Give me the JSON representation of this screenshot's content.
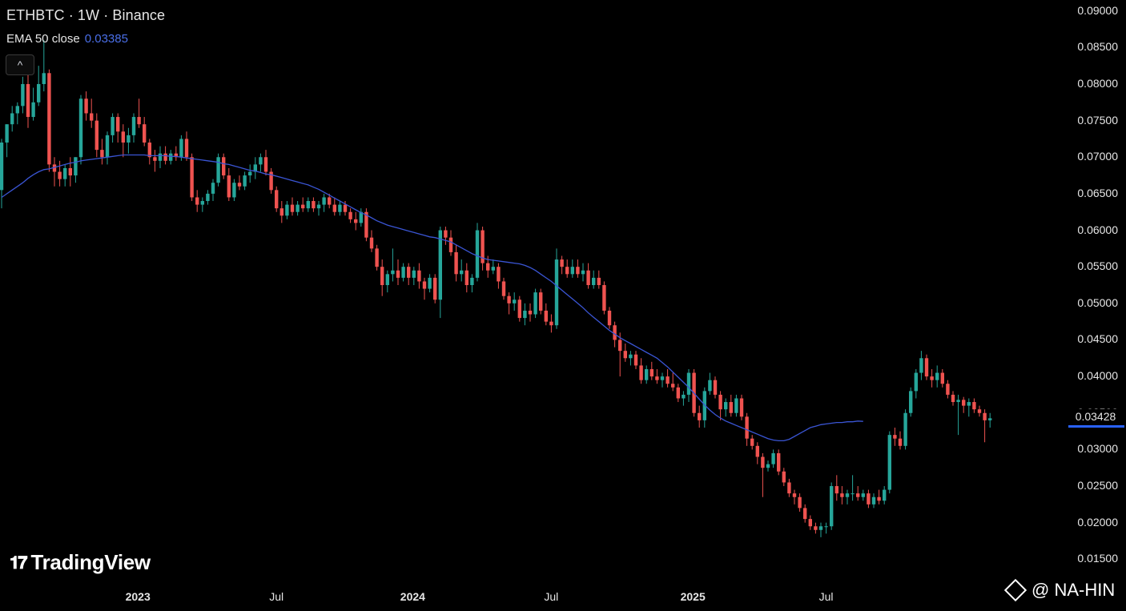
{
  "header": {
    "title": "ETHBTC · 1W · Binance",
    "ema_label": "EMA 50 close",
    "ema_value": "0.03385"
  },
  "collapse_button": "^",
  "last_price_label": "0.03428",
  "logo_text": "TradingView",
  "watermark_text": "@ NA-HIN",
  "colors": {
    "up": "#26a69a",
    "down": "#ef5350",
    "ema": "#2962ff",
    "background": "#000000"
  },
  "chart_data": {
    "type": "candlestick",
    "symbol": "ETHBTC",
    "interval": "1W",
    "exchange": "Binance",
    "ylim": [
      0.0135,
      0.0915
    ],
    "y_ticks": [
      "0.09000",
      "0.08500",
      "0.08000",
      "0.07500",
      "0.07000",
      "0.06500",
      "0.06000",
      "0.05500",
      "0.05000",
      "0.04500",
      "0.04000",
      "0.03500",
      "0.03000",
      "0.02500",
      "0.02000",
      "0.01500"
    ],
    "x_ticks": [
      {
        "label": "2023",
        "bold": true,
        "week": 26
      },
      {
        "label": "Jul",
        "bold": false,
        "week": 52
      },
      {
        "label": "2024",
        "bold": true,
        "week": 78
      },
      {
        "label": "Jul",
        "bold": false,
        "week": 104
      },
      {
        "label": "2025",
        "bold": true,
        "week": 131
      },
      {
        "label": "Jul",
        "bold": false,
        "week": 156
      }
    ],
    "series": [
      {
        "name": "EMA 50 close",
        "type": "line",
        "values": [
          0.0645,
          0.065,
          0.0655,
          0.066,
          0.0665,
          0.0671,
          0.0676,
          0.068,
          0.0683,
          0.0684,
          0.0686,
          0.0688,
          0.069,
          0.0692,
          0.0693,
          0.0695,
          0.0696,
          0.0697,
          0.0698,
          0.0699,
          0.07,
          0.0701,
          0.0702,
          0.0703,
          0.0703,
          0.0703,
          0.0703,
          0.0703,
          0.0702,
          0.0702,
          0.0702,
          0.0702,
          0.0701,
          0.0701,
          0.07,
          0.0699,
          0.0698,
          0.0697,
          0.0696,
          0.0695,
          0.0694,
          0.0693,
          0.0691,
          0.069,
          0.0688,
          0.0686,
          0.0684,
          0.0682,
          0.0681,
          0.0679,
          0.0677,
          0.0676,
          0.0674,
          0.0672,
          0.067,
          0.0668,
          0.0666,
          0.0664,
          0.0662,
          0.0659,
          0.0656,
          0.0652,
          0.0648,
          0.0644,
          0.064,
          0.0636,
          0.0632,
          0.0628,
          0.0624,
          0.0621,
          0.0617,
          0.0613,
          0.061,
          0.0607,
          0.0605,
          0.0603,
          0.0601,
          0.0599,
          0.0597,
          0.0595,
          0.0593,
          0.0591,
          0.059,
          0.0588,
          0.0586,
          0.0584,
          0.058,
          0.0576,
          0.0572,
          0.0568,
          0.0565,
          0.0562,
          0.056,
          0.0559,
          0.0558,
          0.0557,
          0.0556,
          0.0555,
          0.0554,
          0.0552,
          0.0549,
          0.0545,
          0.054,
          0.0535,
          0.053,
          0.0524,
          0.0518,
          0.0512,
          0.0506,
          0.05,
          0.0494,
          0.0487,
          0.0481,
          0.0475,
          0.0469,
          0.0463,
          0.0458,
          0.0453,
          0.0449,
          0.0445,
          0.0441,
          0.0437,
          0.0433,
          0.0429,
          0.0425,
          0.0419,
          0.0413,
          0.0406,
          0.0399,
          0.0392,
          0.0385,
          0.0377,
          0.0369,
          0.0361,
          0.0354,
          0.0348,
          0.0343,
          0.0339,
          0.0336,
          0.0333,
          0.033,
          0.0327,
          0.0324,
          0.0321,
          0.0318,
          0.0315,
          0.0313,
          0.0312,
          0.0312,
          0.0314,
          0.0318,
          0.0322,
          0.0326,
          0.033,
          0.0332,
          0.0334,
          0.0335,
          0.0336,
          0.0337,
          0.0337,
          0.0338,
          0.0338,
          0.0339,
          0.03385
        ]
      }
    ],
    "candles": [
      [
        0.0655,
        0.0725,
        0.063,
        0.072
      ],
      [
        0.072,
        0.0745,
        0.07,
        0.0745
      ],
      [
        0.0745,
        0.077,
        0.0735,
        0.076
      ],
      [
        0.076,
        0.0775,
        0.0745,
        0.077
      ],
      [
        0.077,
        0.081,
        0.076,
        0.08
      ],
      [
        0.08,
        0.0815,
        0.074,
        0.0755
      ],
      [
        0.0755,
        0.0795,
        0.075,
        0.0775
      ],
      [
        0.0775,
        0.0825,
        0.077,
        0.08
      ],
      [
        0.08,
        0.086,
        0.079,
        0.0815
      ],
      [
        0.0815,
        0.082,
        0.068,
        0.069
      ],
      [
        0.069,
        0.07,
        0.066,
        0.068
      ],
      [
        0.068,
        0.0695,
        0.066,
        0.067
      ],
      [
        0.067,
        0.069,
        0.066,
        0.0685
      ],
      [
        0.0685,
        0.07,
        0.066,
        0.0675
      ],
      [
        0.0675,
        0.07,
        0.0665,
        0.07
      ],
      [
        0.07,
        0.0785,
        0.069,
        0.078
      ],
      [
        0.078,
        0.079,
        0.075,
        0.076
      ],
      [
        0.076,
        0.078,
        0.074,
        0.075
      ],
      [
        0.075,
        0.076,
        0.07,
        0.071
      ],
      [
        0.071,
        0.0725,
        0.069,
        0.07
      ],
      [
        0.07,
        0.0735,
        0.069,
        0.073
      ],
      [
        0.073,
        0.076,
        0.072,
        0.0755
      ],
      [
        0.0755,
        0.076,
        0.072,
        0.0735
      ],
      [
        0.0735,
        0.0745,
        0.07,
        0.072
      ],
      [
        0.072,
        0.074,
        0.0705,
        0.073
      ],
      [
        0.073,
        0.076,
        0.072,
        0.0755
      ],
      [
        0.0755,
        0.078,
        0.074,
        0.0745
      ],
      [
        0.0745,
        0.0755,
        0.0715,
        0.072
      ],
      [
        0.072,
        0.0725,
        0.069,
        0.07
      ],
      [
        0.07,
        0.071,
        0.068,
        0.0695
      ],
      [
        0.0695,
        0.0715,
        0.0685,
        0.0705
      ],
      [
        0.0705,
        0.0715,
        0.069,
        0.0695
      ],
      [
        0.0695,
        0.071,
        0.069,
        0.0705
      ],
      [
        0.0705,
        0.0715,
        0.0695,
        0.07
      ],
      [
        0.07,
        0.073,
        0.0695,
        0.0725
      ],
      [
        0.0725,
        0.0735,
        0.0695,
        0.07
      ],
      [
        0.07,
        0.0705,
        0.064,
        0.0645
      ],
      [
        0.0645,
        0.0655,
        0.0625,
        0.0635
      ],
      [
        0.0635,
        0.0645,
        0.0625,
        0.064
      ],
      [
        0.064,
        0.0655,
        0.0635,
        0.065
      ],
      [
        0.065,
        0.067,
        0.064,
        0.0665
      ],
      [
        0.0665,
        0.0705,
        0.066,
        0.07
      ],
      [
        0.07,
        0.0705,
        0.067,
        0.0675
      ],
      [
        0.0675,
        0.0685,
        0.064,
        0.0645
      ],
      [
        0.0645,
        0.067,
        0.064,
        0.0665
      ],
      [
        0.0665,
        0.0675,
        0.0655,
        0.066
      ],
      [
        0.066,
        0.068,
        0.0655,
        0.0675
      ],
      [
        0.0675,
        0.069,
        0.0665,
        0.068
      ],
      [
        0.068,
        0.07,
        0.067,
        0.069
      ],
      [
        0.069,
        0.0705,
        0.068,
        0.07
      ],
      [
        0.07,
        0.071,
        0.0675,
        0.068
      ],
      [
        0.068,
        0.0685,
        0.065,
        0.0655
      ],
      [
        0.0655,
        0.066,
        0.0625,
        0.063
      ],
      [
        0.063,
        0.064,
        0.061,
        0.062
      ],
      [
        0.062,
        0.064,
        0.0615,
        0.0635
      ],
      [
        0.0635,
        0.0645,
        0.062,
        0.0625
      ],
      [
        0.0625,
        0.064,
        0.062,
        0.0635
      ],
      [
        0.0635,
        0.0645,
        0.0625,
        0.063
      ],
      [
        0.063,
        0.0645,
        0.0625,
        0.064
      ],
      [
        0.064,
        0.0645,
        0.0625,
        0.063
      ],
      [
        0.063,
        0.064,
        0.062,
        0.0635
      ],
      [
        0.0635,
        0.065,
        0.0625,
        0.0645
      ],
      [
        0.0645,
        0.065,
        0.063,
        0.0635
      ],
      [
        0.0635,
        0.0645,
        0.062,
        0.0625
      ],
      [
        0.0625,
        0.064,
        0.062,
        0.0635
      ],
      [
        0.0635,
        0.064,
        0.062,
        0.0625
      ],
      [
        0.0625,
        0.063,
        0.061,
        0.0615
      ],
      [
        0.0615,
        0.0625,
        0.06,
        0.061
      ],
      [
        0.061,
        0.063,
        0.0605,
        0.0625
      ],
      [
        0.0625,
        0.063,
        0.0585,
        0.059
      ],
      [
        0.059,
        0.06,
        0.057,
        0.0575
      ],
      [
        0.0575,
        0.058,
        0.0545,
        0.055
      ],
      [
        0.055,
        0.056,
        0.051,
        0.0525
      ],
      [
        0.0525,
        0.0545,
        0.0515,
        0.054
      ],
      [
        0.054,
        0.0575,
        0.053,
        0.0545
      ],
      [
        0.0545,
        0.056,
        0.0525,
        0.0535
      ],
      [
        0.0535,
        0.0555,
        0.053,
        0.055
      ],
      [
        0.055,
        0.0555,
        0.0525,
        0.0535
      ],
      [
        0.0535,
        0.055,
        0.0525,
        0.0545
      ],
      [
        0.0545,
        0.0555,
        0.052,
        0.053
      ],
      [
        0.053,
        0.0535,
        0.0505,
        0.052
      ],
      [
        0.052,
        0.054,
        0.0515,
        0.0535
      ],
      [
        0.0535,
        0.054,
        0.05,
        0.0505
      ],
      [
        0.0505,
        0.0605,
        0.048,
        0.06
      ],
      [
        0.06,
        0.0605,
        0.058,
        0.059
      ],
      [
        0.059,
        0.06,
        0.0565,
        0.057
      ],
      [
        0.057,
        0.058,
        0.053,
        0.054
      ],
      [
        0.054,
        0.056,
        0.053,
        0.0545
      ],
      [
        0.0545,
        0.0555,
        0.0515,
        0.0525
      ],
      [
        0.0525,
        0.054,
        0.0515,
        0.0535
      ],
      [
        0.0535,
        0.061,
        0.053,
        0.06
      ],
      [
        0.06,
        0.0605,
        0.0545,
        0.0555
      ],
      [
        0.0555,
        0.0565,
        0.0535,
        0.0545
      ],
      [
        0.0545,
        0.056,
        0.054,
        0.055
      ],
      [
        0.055,
        0.0555,
        0.052,
        0.053
      ],
      [
        0.053,
        0.0535,
        0.0505,
        0.051
      ],
      [
        0.051,
        0.0515,
        0.0485,
        0.05
      ],
      [
        0.05,
        0.0515,
        0.049,
        0.0505
      ],
      [
        0.0505,
        0.051,
        0.0475,
        0.048
      ],
      [
        0.048,
        0.05,
        0.047,
        0.049
      ],
      [
        0.049,
        0.05,
        0.0475,
        0.0485
      ],
      [
        0.0485,
        0.052,
        0.048,
        0.0515
      ],
      [
        0.0515,
        0.052,
        0.0485,
        0.049
      ],
      [
        0.049,
        0.05,
        0.047,
        0.0475
      ],
      [
        0.0475,
        0.0485,
        0.046,
        0.047
      ],
      [
        0.047,
        0.0575,
        0.0465,
        0.056
      ],
      [
        0.056,
        0.0565,
        0.054,
        0.055
      ],
      [
        0.055,
        0.056,
        0.0535,
        0.054
      ],
      [
        0.054,
        0.056,
        0.0535,
        0.055
      ],
      [
        0.055,
        0.056,
        0.0535,
        0.054
      ],
      [
        0.054,
        0.0555,
        0.053,
        0.0545
      ],
      [
        0.0545,
        0.0555,
        0.052,
        0.0525
      ],
      [
        0.0525,
        0.0545,
        0.052,
        0.0535
      ],
      [
        0.0535,
        0.0545,
        0.052,
        0.0525
      ],
      [
        0.0525,
        0.053,
        0.0485,
        0.049
      ],
      [
        0.049,
        0.0495,
        0.0465,
        0.047
      ],
      [
        0.047,
        0.0475,
        0.044,
        0.045
      ],
      [
        0.045,
        0.046,
        0.04,
        0.0435
      ],
      [
        0.0435,
        0.0445,
        0.042,
        0.0425
      ],
      [
        0.0425,
        0.0435,
        0.0415,
        0.043
      ],
      [
        0.043,
        0.0435,
        0.041,
        0.0415
      ],
      [
        0.0415,
        0.0425,
        0.039,
        0.0395
      ],
      [
        0.0395,
        0.0415,
        0.039,
        0.041
      ],
      [
        0.041,
        0.042,
        0.0395,
        0.04
      ],
      [
        0.04,
        0.041,
        0.039,
        0.0395
      ],
      [
        0.0395,
        0.0405,
        0.0385,
        0.04
      ],
      [
        0.04,
        0.041,
        0.0385,
        0.039
      ],
      [
        0.039,
        0.0405,
        0.038,
        0.0385
      ],
      [
        0.0385,
        0.039,
        0.0365,
        0.037
      ],
      [
        0.037,
        0.038,
        0.036,
        0.0375
      ],
      [
        0.0375,
        0.041,
        0.0365,
        0.0405
      ],
      [
        0.0405,
        0.041,
        0.0345,
        0.035
      ],
      [
        0.035,
        0.036,
        0.033,
        0.034
      ],
      [
        0.034,
        0.0385,
        0.033,
        0.038
      ],
      [
        0.038,
        0.0405,
        0.0375,
        0.0395
      ],
      [
        0.0395,
        0.04,
        0.037,
        0.0375
      ],
      [
        0.0375,
        0.038,
        0.034,
        0.0355
      ],
      [
        0.0355,
        0.037,
        0.0345,
        0.0365
      ],
      [
        0.0365,
        0.0375,
        0.0345,
        0.035
      ],
      [
        0.035,
        0.0375,
        0.0345,
        0.037
      ],
      [
        0.037,
        0.0375,
        0.034,
        0.0345
      ],
      [
        0.0345,
        0.035,
        0.0305,
        0.0315
      ],
      [
        0.0315,
        0.032,
        0.03,
        0.0305
      ],
      [
        0.0305,
        0.031,
        0.028,
        0.029
      ],
      [
        0.029,
        0.0295,
        0.0235,
        0.0275
      ],
      [
        0.0275,
        0.0285,
        0.027,
        0.028
      ],
      [
        0.028,
        0.03,
        0.0275,
        0.0295
      ],
      [
        0.0295,
        0.03,
        0.0265,
        0.027
      ],
      [
        0.027,
        0.0275,
        0.025,
        0.0255
      ],
      [
        0.0255,
        0.026,
        0.0235,
        0.024
      ],
      [
        0.024,
        0.0245,
        0.0225,
        0.0235
      ],
      [
        0.0235,
        0.024,
        0.0215,
        0.022
      ],
      [
        0.022,
        0.0225,
        0.02,
        0.0205
      ],
      [
        0.0205,
        0.021,
        0.019,
        0.0195
      ],
      [
        0.0195,
        0.02,
        0.0185,
        0.019
      ],
      [
        0.019,
        0.02,
        0.018,
        0.0195
      ],
      [
        0.0195,
        0.02,
        0.0185,
        0.0195
      ],
      [
        0.0195,
        0.0255,
        0.019,
        0.025
      ],
      [
        0.025,
        0.0265,
        0.023,
        0.024
      ],
      [
        0.024,
        0.025,
        0.0225,
        0.0235
      ],
      [
        0.0235,
        0.0245,
        0.0225,
        0.024
      ],
      [
        0.024,
        0.0265,
        0.023,
        0.024
      ],
      [
        0.024,
        0.025,
        0.023,
        0.0235
      ],
      [
        0.0235,
        0.0245,
        0.023,
        0.024
      ],
      [
        0.024,
        0.0245,
        0.022,
        0.0225
      ],
      [
        0.0225,
        0.024,
        0.022,
        0.0235
      ],
      [
        0.0235,
        0.0245,
        0.0225,
        0.023
      ],
      [
        0.023,
        0.025,
        0.0225,
        0.0245
      ],
      [
        0.0245,
        0.0325,
        0.024,
        0.032
      ],
      [
        0.032,
        0.033,
        0.0305,
        0.0315
      ],
      [
        0.0315,
        0.0325,
        0.03,
        0.0305
      ],
      [
        0.0305,
        0.0355,
        0.03,
        0.035
      ],
      [
        0.035,
        0.0385,
        0.0345,
        0.038
      ],
      [
        0.038,
        0.041,
        0.037,
        0.0405
      ],
      [
        0.0405,
        0.0435,
        0.0395,
        0.0425
      ],
      [
        0.0425,
        0.043,
        0.0395,
        0.04
      ],
      [
        0.04,
        0.041,
        0.0385,
        0.0395
      ],
      [
        0.0395,
        0.0415,
        0.0385,
        0.0405
      ],
      [
        0.0405,
        0.041,
        0.0385,
        0.039
      ],
      [
        0.039,
        0.0395,
        0.037,
        0.0375
      ],
      [
        0.0375,
        0.038,
        0.036,
        0.0365
      ],
      [
        0.0365,
        0.0375,
        0.032,
        0.0368
      ],
      [
        0.0368,
        0.0372,
        0.035,
        0.036
      ],
      [
        0.036,
        0.037,
        0.0345,
        0.0365
      ],
      [
        0.0365,
        0.037,
        0.035,
        0.0355
      ],
      [
        0.0355,
        0.036,
        0.0345,
        0.035
      ],
      [
        0.035,
        0.0355,
        0.031,
        0.034
      ],
      [
        0.034,
        0.035,
        0.033,
        0.03428
      ]
    ]
  }
}
